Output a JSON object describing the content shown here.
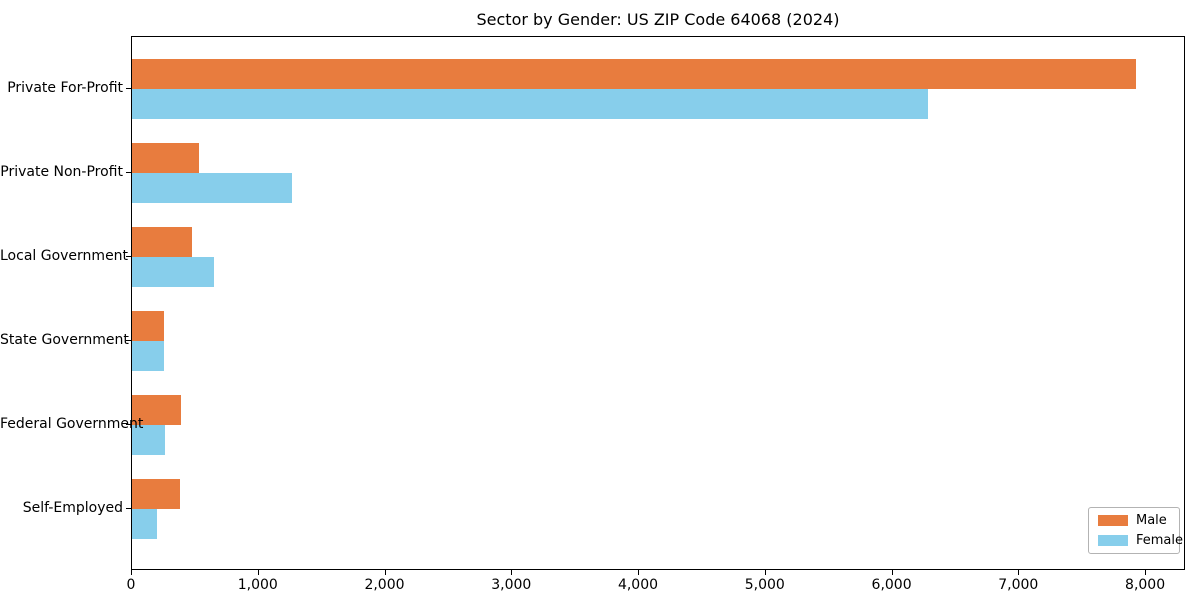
{
  "chart_data": {
    "type": "bar",
    "orientation": "horizontal",
    "title": "Sector by Gender: US ZIP Code 64068 (2024)",
    "xlabel": "",
    "ylabel": "",
    "categories": [
      "Private For-Profit",
      "Private Non-Profit",
      "Local Government",
      "State Government",
      "Federal Government",
      "Self-Employed"
    ],
    "series": [
      {
        "name": "Male",
        "color": "#e87c3e",
        "values": [
          7920,
          530,
          470,
          250,
          390,
          375
        ]
      },
      {
        "name": "Female",
        "color": "#87ceeb",
        "values": [
          6280,
          1265,
          650,
          255,
          260,
          200
        ]
      }
    ],
    "xlim": [
      0,
      8315
    ],
    "xticks": [
      0,
      1000,
      2000,
      3000,
      4000,
      5000,
      6000,
      7000,
      8000
    ],
    "xtick_labels": [
      "0",
      "1,000",
      "2,000",
      "3,000",
      "4,000",
      "5,000",
      "6,000",
      "7,000",
      "8,000"
    ],
    "grid": false,
    "legend": {
      "position": "lower right",
      "entries": [
        "Male",
        "Female"
      ]
    }
  }
}
